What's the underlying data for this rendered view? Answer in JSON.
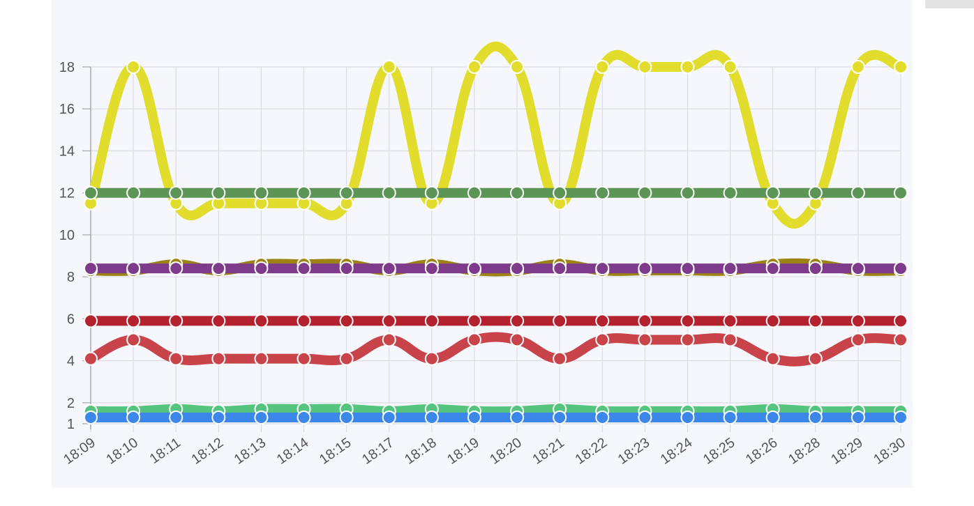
{
  "chart_data": {
    "type": "line",
    "title": "",
    "xlabel": "",
    "ylabel": "",
    "categories": [
      "18:09",
      "18:10",
      "18:11",
      "18:12",
      "18:13",
      "18:14",
      "18:15",
      "18:17",
      "18:18",
      "18:19",
      "18:20",
      "18:21",
      "18:22",
      "18:23",
      "18:24",
      "18:25",
      "18:26",
      "18:28",
      "18:29",
      "18:30"
    ],
    "y_ticks": [
      1,
      2,
      4,
      6,
      8,
      10,
      12,
      14,
      16,
      18
    ],
    "ylim": [
      1,
      18
    ],
    "grid": true,
    "legend": "none",
    "series": [
      {
        "color": "#e2dd2c",
        "values": [
          11.5,
          18,
          11.5,
          11.5,
          11.5,
          11.5,
          11.5,
          18,
          11.5,
          18,
          18,
          11.5,
          18,
          18,
          18,
          18,
          11.5,
          11.5,
          18,
          18
        ]
      },
      {
        "color": "#9b8414",
        "values": [
          8.3,
          8.3,
          8.6,
          8.3,
          8.6,
          8.6,
          8.6,
          8.3,
          8.6,
          8.3,
          8.3,
          8.6,
          8.3,
          8.3,
          8.3,
          8.3,
          8.6,
          8.6,
          8.3,
          8.3
        ]
      },
      {
        "color": "#5d9557",
        "values": [
          12,
          12,
          12,
          12,
          12,
          12,
          12,
          12,
          12,
          12,
          12,
          12,
          12,
          12,
          12,
          12,
          12,
          12,
          12,
          12
        ]
      },
      {
        "color": "#7e3b8c",
        "values": [
          8.4,
          8.4,
          8.4,
          8.4,
          8.4,
          8.4,
          8.4,
          8.4,
          8.4,
          8.4,
          8.4,
          8.4,
          8.4,
          8.4,
          8.4,
          8.4,
          8.4,
          8.4,
          8.4,
          8.4
        ]
      },
      {
        "color": "#c8434a",
        "values": [
          4.1,
          5,
          4.1,
          4.1,
          4.1,
          4.1,
          4.1,
          5,
          4.1,
          5,
          5,
          4.1,
          5,
          5,
          5,
          5,
          4.1,
          4.1,
          5,
          5
        ]
      },
      {
        "color": "#b3222e",
        "values": [
          5.9,
          5.9,
          5.9,
          5.9,
          5.9,
          5.9,
          5.9,
          5.9,
          5.9,
          5.9,
          5.9,
          5.9,
          5.9,
          5.9,
          5.9,
          5.9,
          5.9,
          5.9,
          5.9,
          5.9
        ]
      },
      {
        "color": "#55c47e",
        "values": [
          1.6,
          1.6,
          1.7,
          1.6,
          1.7,
          1.7,
          1.7,
          1.6,
          1.7,
          1.6,
          1.6,
          1.7,
          1.6,
          1.6,
          1.6,
          1.6,
          1.7,
          1.6,
          1.6,
          1.6
        ]
      },
      {
        "color": "#3c87ea",
        "values": [
          1.3,
          1.3,
          1.3,
          1.3,
          1.3,
          1.3,
          1.3,
          1.3,
          1.3,
          1.3,
          1.3,
          1.3,
          1.3,
          1.3,
          1.3,
          1.3,
          1.3,
          1.3,
          1.3,
          1.3
        ]
      }
    ]
  }
}
